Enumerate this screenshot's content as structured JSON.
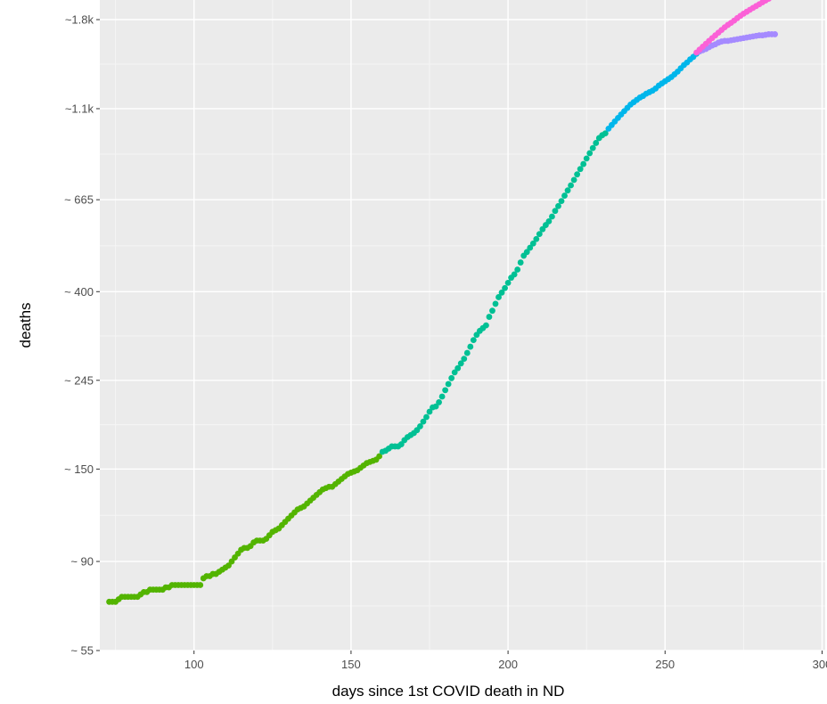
{
  "chart_data": {
    "type": "scatter",
    "title": "",
    "xlabel": "days since 1st COVID death in ND",
    "ylabel": "deaths",
    "xlim": [
      70,
      301
    ],
    "ylim": [
      55,
      1800
    ],
    "y_scale": "log",
    "grid": true,
    "legend": "none",
    "x_ticks": [
      100,
      150,
      200,
      250,
      300
    ],
    "y_ticks": [
      {
        "value": 55,
        "label": "~ 55"
      },
      {
        "value": 90,
        "label": "~ 90"
      },
      {
        "value": 150,
        "label": "~ 150"
      },
      {
        "value": 245,
        "label": "~ 245"
      },
      {
        "value": 400,
        "label": "~ 400"
      },
      {
        "value": 665,
        "label": "~ 665"
      },
      {
        "value": 1100,
        "label": "~1.1k"
      },
      {
        "value": 1800,
        "label": "~1.8k"
      }
    ],
    "series": [
      {
        "color": "#53b400",
        "points": [
          [
            73,
            72
          ],
          [
            74,
            72
          ],
          [
            75,
            72
          ],
          [
            76,
            73
          ],
          [
            77,
            74
          ],
          [
            78,
            74
          ],
          [
            79,
            74
          ],
          [
            80,
            74
          ],
          [
            81,
            74
          ],
          [
            82,
            74
          ],
          [
            83,
            75
          ],
          [
            84,
            76
          ],
          [
            85,
            76
          ],
          [
            86,
            77
          ],
          [
            87,
            77
          ],
          [
            88,
            77
          ],
          [
            89,
            77
          ],
          [
            90,
            77
          ],
          [
            91,
            78
          ],
          [
            92,
            78
          ],
          [
            93,
            79
          ],
          [
            94,
            79
          ],
          [
            95,
            79
          ],
          [
            96,
            79
          ],
          [
            97,
            79
          ],
          [
            98,
            79
          ],
          [
            99,
            79
          ],
          [
            100,
            79
          ],
          [
            101,
            79
          ],
          [
            102,
            79
          ],
          [
            103,
            82
          ],
          [
            104,
            83
          ],
          [
            105,
            83
          ],
          [
            106,
            84
          ],
          [
            107,
            84
          ],
          [
            108,
            85
          ],
          [
            109,
            86
          ],
          [
            110,
            87
          ],
          [
            111,
            88
          ],
          [
            112,
            90
          ],
          [
            113,
            92
          ],
          [
            114,
            94
          ],
          [
            115,
            96
          ],
          [
            116,
            97
          ],
          [
            117,
            97
          ],
          [
            118,
            98
          ],
          [
            119,
            100
          ],
          [
            120,
            101
          ],
          [
            121,
            101
          ],
          [
            122,
            101
          ],
          [
            123,
            102
          ],
          [
            124,
            104
          ],
          [
            125,
            106
          ],
          [
            126,
            107
          ],
          [
            127,
            108
          ],
          [
            128,
            110
          ],
          [
            129,
            112
          ],
          [
            130,
            114
          ],
          [
            131,
            116
          ],
          [
            132,
            118
          ],
          [
            133,
            120
          ],
          [
            134,
            121
          ],
          [
            135,
            122
          ],
          [
            136,
            124
          ],
          [
            137,
            126
          ],
          [
            138,
            128
          ],
          [
            139,
            130
          ],
          [
            140,
            132
          ],
          [
            141,
            134
          ],
          [
            142,
            135
          ],
          [
            143,
            136
          ],
          [
            144,
            136
          ],
          [
            145,
            138
          ],
          [
            146,
            140
          ],
          [
            147,
            142
          ],
          [
            148,
            144
          ],
          [
            149,
            146
          ],
          [
            150,
            147
          ],
          [
            151,
            148
          ],
          [
            152,
            149
          ],
          [
            153,
            151
          ],
          [
            154,
            153
          ],
          [
            155,
            155
          ],
          [
            156,
            156
          ],
          [
            157,
            157
          ],
          [
            158,
            158
          ],
          [
            159,
            161
          ]
        ]
      },
      {
        "color": "#00c094",
        "points": [
          [
            160,
            165
          ],
          [
            161,
            166
          ],
          [
            162,
            168
          ],
          [
            163,
            170
          ],
          [
            164,
            170
          ],
          [
            165,
            170
          ],
          [
            166,
            172
          ],
          [
            167,
            176
          ],
          [
            168,
            179
          ],
          [
            169,
            181
          ],
          [
            170,
            183
          ],
          [
            171,
            186
          ],
          [
            172,
            190
          ],
          [
            173,
            195
          ],
          [
            174,
            200
          ],
          [
            175,
            206
          ],
          [
            176,
            211
          ],
          [
            177,
            212
          ],
          [
            178,
            217
          ],
          [
            179,
            224
          ],
          [
            180,
            232
          ],
          [
            181,
            240
          ],
          [
            182,
            248
          ],
          [
            183,
            256
          ],
          [
            184,
            262
          ],
          [
            185,
            269
          ],
          [
            186,
            276
          ],
          [
            187,
            285
          ],
          [
            188,
            295
          ],
          [
            189,
            306
          ],
          [
            190,
            315
          ],
          [
            191,
            322
          ],
          [
            192,
            327
          ],
          [
            193,
            332
          ],
          [
            194,
            348
          ],
          [
            195,
            360
          ],
          [
            196,
            374
          ],
          [
            197,
            388
          ],
          [
            198,
            398
          ],
          [
            199,
            408
          ],
          [
            200,
            420
          ],
          [
            201,
            432
          ],
          [
            202,
            440
          ],
          [
            203,
            452
          ],
          [
            204,
            470
          ],
          [
            205,
            488
          ],
          [
            206,
            498
          ],
          [
            207,
            510
          ],
          [
            208,
            522
          ],
          [
            209,
            535
          ],
          [
            210,
            550
          ],
          [
            211,
            565
          ],
          [
            212,
            578
          ],
          [
            213,
            590
          ],
          [
            214,
            606
          ],
          [
            215,
            625
          ],
          [
            216,
            642
          ],
          [
            217,
            660
          ],
          [
            218,
            680
          ],
          [
            219,
            700
          ],
          [
            220,
            720
          ],
          [
            221,
            742
          ],
          [
            222,
            765
          ],
          [
            223,
            788
          ],
          [
            224,
            810
          ],
          [
            225,
            835
          ],
          [
            226,
            860
          ],
          [
            227,
            885
          ],
          [
            228,
            910
          ],
          [
            229,
            935
          ],
          [
            230,
            950
          ],
          [
            231,
            960
          ]
        ]
      },
      {
        "color": "#00b6eb",
        "points": [
          [
            232,
            985
          ],
          [
            233,
            1005
          ],
          [
            234,
            1025
          ],
          [
            235,
            1045
          ],
          [
            236,
            1065
          ],
          [
            237,
            1085
          ],
          [
            238,
            1105
          ],
          [
            239,
            1125
          ],
          [
            240,
            1140
          ],
          [
            241,
            1155
          ],
          [
            242,
            1170
          ],
          [
            243,
            1180
          ],
          [
            244,
            1195
          ],
          [
            245,
            1205
          ],
          [
            246,
            1215
          ],
          [
            247,
            1230
          ],
          [
            248,
            1250
          ],
          [
            249,
            1265
          ],
          [
            250,
            1280
          ],
          [
            251,
            1295
          ],
          [
            252,
            1310
          ],
          [
            253,
            1330
          ],
          [
            254,
            1350
          ],
          [
            255,
            1375
          ],
          [
            256,
            1400
          ],
          [
            257,
            1420
          ],
          [
            258,
            1445
          ],
          [
            259,
            1465
          ],
          [
            260,
            1490
          ]
        ]
      },
      {
        "color": "#a58aff",
        "points": [
          [
            261,
            1510
          ],
          [
            262,
            1520
          ],
          [
            263,
            1530
          ],
          [
            264,
            1545
          ],
          [
            265,
            1560
          ],
          [
            266,
            1570
          ],
          [
            267,
            1585
          ],
          [
            268,
            1595
          ],
          [
            269,
            1600
          ],
          [
            270,
            1600
          ],
          [
            271,
            1605
          ],
          [
            272,
            1610
          ],
          [
            273,
            1615
          ],
          [
            274,
            1620
          ],
          [
            275,
            1625
          ],
          [
            276,
            1630
          ],
          [
            277,
            1635
          ],
          [
            278,
            1640
          ],
          [
            279,
            1645
          ],
          [
            280,
            1650
          ],
          [
            281,
            1650
          ],
          [
            282,
            1655
          ],
          [
            283,
            1660
          ],
          [
            284,
            1660
          ],
          [
            285,
            1660
          ]
        ]
      },
      {
        "color": "#fb61d7",
        "points": [
          [
            260,
            1500
          ],
          [
            261,
            1525
          ],
          [
            262,
            1550
          ],
          [
            263,
            1575
          ],
          [
            264,
            1600
          ],
          [
            265,
            1625
          ],
          [
            266,
            1650
          ],
          [
            267,
            1675
          ],
          [
            268,
            1700
          ],
          [
            269,
            1725
          ],
          [
            270,
            1748
          ],
          [
            271,
            1768
          ],
          [
            272,
            1790
          ],
          [
            273,
            1815
          ],
          [
            274,
            1838
          ],
          [
            275,
            1860
          ],
          [
            276,
            1880
          ],
          [
            277,
            1900
          ],
          [
            278,
            1920
          ],
          [
            279,
            1940
          ],
          [
            280,
            1960
          ],
          [
            281,
            1980
          ],
          [
            282,
            2000
          ],
          [
            283,
            2020
          ],
          [
            284,
            2040
          ],
          [
            285,
            2060
          ]
        ]
      }
    ]
  }
}
